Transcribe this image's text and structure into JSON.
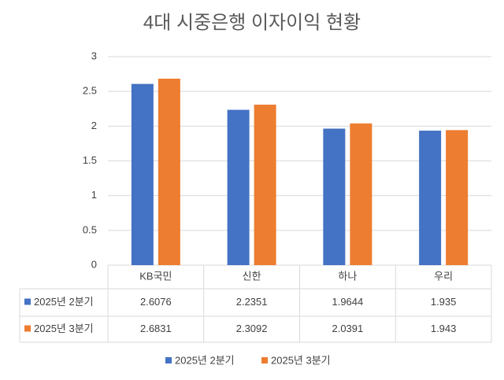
{
  "chart_data": {
    "type": "bar",
    "title": "4대 시중은행 이자이익 현황",
    "categories": [
      "KB국민",
      "신한",
      "하나",
      "우리"
    ],
    "series": [
      {
        "name": "2025년 2분기",
        "color": "#4472c4",
        "values": [
          2.6076,
          2.2351,
          1.9644,
          1.935
        ]
      },
      {
        "name": "2025년 3분기",
        "color": "#ed7d31",
        "values": [
          2.6831,
          2.3092,
          2.0391,
          1.943
        ]
      }
    ],
    "ylim": [
      0,
      3
    ],
    "yticks": [
      0,
      0.5,
      1,
      1.5,
      2,
      2.5,
      3
    ],
    "grid": true
  }
}
